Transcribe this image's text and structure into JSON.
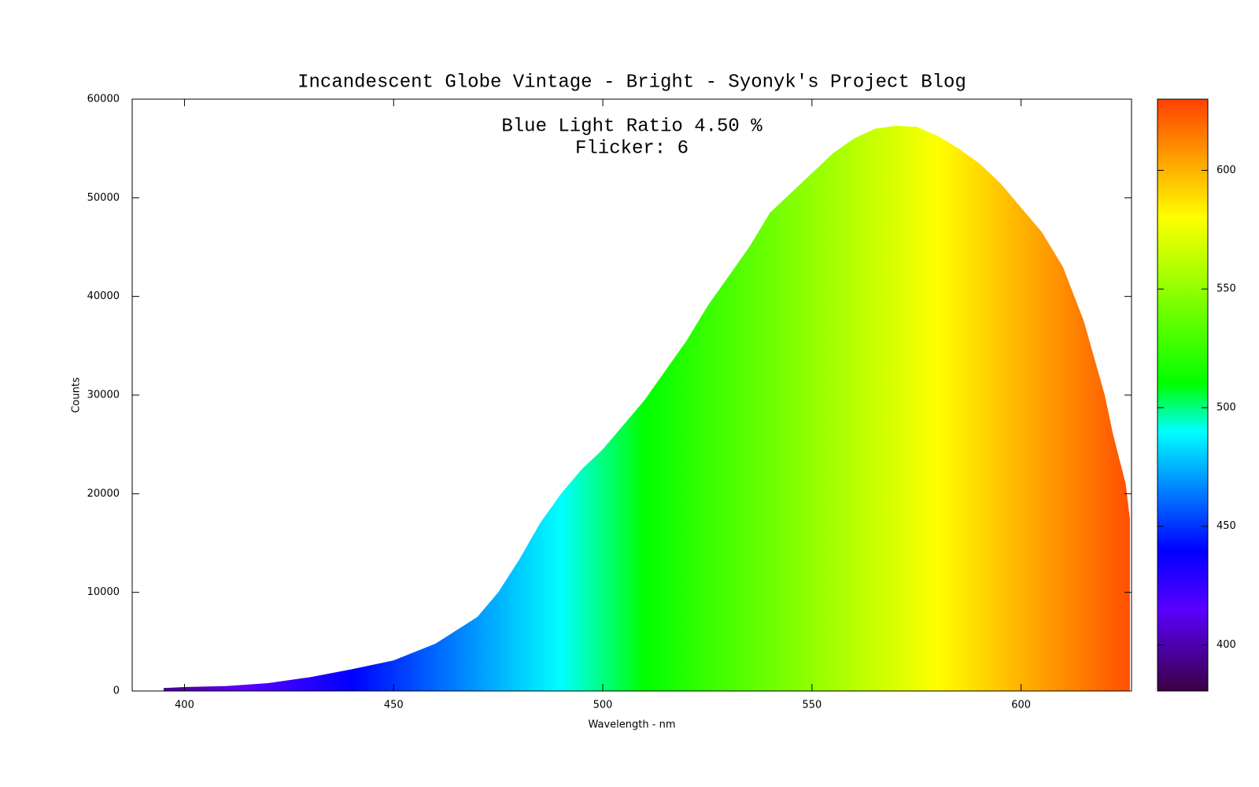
{
  "chart_data": {
    "type": "area",
    "title": "Incandescent Globe Vintage - Bright - Syonyk's Project Blog",
    "annotations": [
      "Blue Light Ratio 4.50 %",
      "Flicker: 6"
    ],
    "x_label": "Wavelength - nm",
    "y_label": "Counts",
    "x": [
      395,
      400,
      410,
      420,
      430,
      440,
      450,
      460,
      470,
      475,
      480,
      485,
      490,
      495,
      500,
      505,
      510,
      515,
      520,
      525,
      530,
      535,
      540,
      545,
      550,
      555,
      560,
      565,
      570,
      575,
      580,
      585,
      590,
      595,
      600,
      605,
      610,
      615,
      620,
      622,
      625,
      626
    ],
    "values": [
      300,
      400,
      500,
      800,
      1400,
      2200,
      3100,
      4800,
      7500,
      10000,
      13300,
      17000,
      20000,
      22500,
      24500,
      27000,
      29500,
      32500,
      35500,
      39000,
      42000,
      45000,
      48500,
      50500,
      52500,
      54500,
      56000,
      57000,
      57300,
      57200,
      56300,
      55000,
      53500,
      51500,
      49000,
      46500,
      43000,
      37500,
      30000,
      26000,
      21000,
      17500
    ],
    "xlim": [
      387.5,
      626.4
    ],
    "ylim": [
      0,
      60000
    ],
    "xticks": [
      400,
      450,
      500,
      550,
      600
    ],
    "yticks": [
      0,
      10000,
      20000,
      30000,
      40000,
      50000,
      60000
    ],
    "cblim": [
      380.6,
      630
    ],
    "cbticks": [
      400,
      450,
      500,
      550,
      600
    ],
    "colormap": [
      {
        "value": 380,
        "color": "#3a0040"
      },
      {
        "value": 415,
        "color": "#5a00ff"
      },
      {
        "value": 440,
        "color": "#0000ff"
      },
      {
        "value": 490,
        "color": "#00ffff"
      },
      {
        "value": 510,
        "color": "#00ff00"
      },
      {
        "value": 580,
        "color": "#ffff00"
      },
      {
        "value": 630,
        "color": "#ff4000"
      }
    ]
  }
}
